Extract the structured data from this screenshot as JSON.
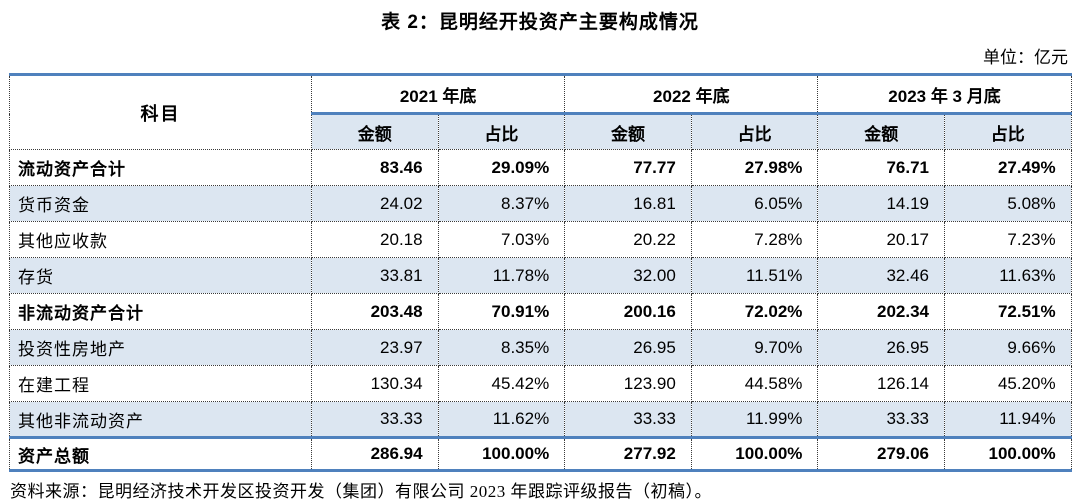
{
  "title": "表 2：昆明经开投资产主要构成情况",
  "unit_label": "单位：亿元",
  "source": "资料来源：昆明经济技术开发区投资开发（集团）有限公司 2023 年跟踪评级报告（初稿）。",
  "colors": {
    "accent_border": "#4f81bd",
    "row_fill": "#dce6f1",
    "text": "#000000"
  },
  "table": {
    "subject_header": "科目",
    "period_headers": [
      "2021 年底",
      "2022 年底",
      "2023 年 3 月底"
    ],
    "sub_headers": [
      "金额",
      "占比"
    ],
    "rows": [
      {
        "label": "流动资产合计",
        "bold": true,
        "shaded": false,
        "total": false,
        "values": [
          "83.46",
          "29.09%",
          "77.77",
          "27.98%",
          "76.71",
          "27.49%"
        ]
      },
      {
        "label": "货币资金",
        "bold": false,
        "shaded": true,
        "total": false,
        "values": [
          "24.02",
          "8.37%",
          "16.81",
          "6.05%",
          "14.19",
          "5.08%"
        ]
      },
      {
        "label": "其他应收款",
        "bold": false,
        "shaded": false,
        "total": false,
        "values": [
          "20.18",
          "7.03%",
          "20.22",
          "7.28%",
          "20.17",
          "7.23%"
        ]
      },
      {
        "label": "存货",
        "bold": false,
        "shaded": true,
        "total": false,
        "values": [
          "33.81",
          "11.78%",
          "32.00",
          "11.51%",
          "32.46",
          "11.63%"
        ]
      },
      {
        "label": "非流动资产合计",
        "bold": true,
        "shaded": false,
        "total": false,
        "values": [
          "203.48",
          "70.91%",
          "200.16",
          "72.02%",
          "202.34",
          "72.51%"
        ]
      },
      {
        "label": "投资性房地产",
        "bold": false,
        "shaded": true,
        "total": false,
        "values": [
          "23.97",
          "8.35%",
          "26.95",
          "9.70%",
          "26.95",
          "9.66%"
        ]
      },
      {
        "label": "在建工程",
        "bold": false,
        "shaded": false,
        "total": false,
        "values": [
          "130.34",
          "45.42%",
          "123.90",
          "44.58%",
          "126.14",
          "45.20%"
        ]
      },
      {
        "label": "其他非流动资产",
        "bold": false,
        "shaded": true,
        "total": false,
        "values": [
          "33.33",
          "11.62%",
          "33.33",
          "11.99%",
          "33.33",
          "11.94%"
        ]
      },
      {
        "label": "资产总额",
        "bold": true,
        "shaded": false,
        "total": true,
        "values": [
          "286.94",
          "100.00%",
          "277.92",
          "100.00%",
          "279.06",
          "100.00%"
        ]
      }
    ]
  },
  "chart_data": {
    "type": "table",
    "title": "表 2：昆明经开投资产主要构成情况",
    "unit": "亿元",
    "columns": [
      "科目",
      "2021 年底 金额",
      "2021 年底 占比",
      "2022 年底 金额",
      "2022 年底 占比",
      "2023 年 3 月底 金额",
      "2023 年 3 月底 占比"
    ],
    "rows": [
      [
        "流动资产合计",
        83.46,
        "29.09%",
        77.77,
        "27.98%",
        76.71,
        "27.49%"
      ],
      [
        "货币资金",
        24.02,
        "8.37%",
        16.81,
        "6.05%",
        14.19,
        "5.08%"
      ],
      [
        "其他应收款",
        20.18,
        "7.03%",
        20.22,
        "7.28%",
        20.17,
        "7.23%"
      ],
      [
        "存货",
        33.81,
        "11.78%",
        32.0,
        "11.51%",
        32.46,
        "11.63%"
      ],
      [
        "非流动资产合计",
        203.48,
        "70.91%",
        200.16,
        "72.02%",
        202.34,
        "72.51%"
      ],
      [
        "投资性房地产",
        23.97,
        "8.35%",
        26.95,
        "9.70%",
        26.95,
        "9.66%"
      ],
      [
        "在建工程",
        130.34,
        "45.42%",
        123.9,
        "44.58%",
        126.14,
        "45.20%"
      ],
      [
        "其他非流动资产",
        33.33,
        "11.62%",
        33.33,
        "11.99%",
        33.33,
        "11.94%"
      ],
      [
        "资产总额",
        286.94,
        "100.00%",
        277.92,
        "100.00%",
        279.06,
        "100.00%"
      ]
    ]
  }
}
